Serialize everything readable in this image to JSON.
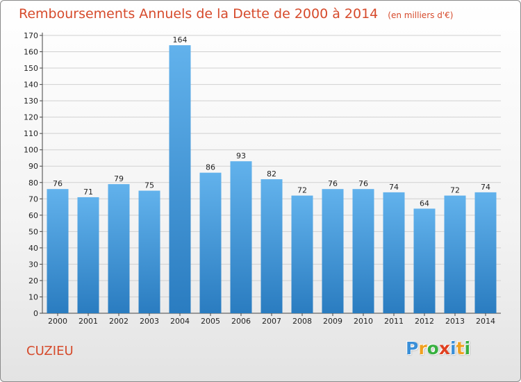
{
  "header": {
    "title": "Remboursements Annuels de la Dette de 2000 à 2014",
    "unit": "(en milliers d'€)"
  },
  "footer": {
    "commune": "CUZIEU",
    "logo_letters": [
      {
        "char": "P",
        "color": "#3a8fd8"
      },
      {
        "char": "r",
        "color": "#f0a020"
      },
      {
        "char": "o",
        "color": "#38b040"
      },
      {
        "char": "x",
        "color": "#e04020"
      },
      {
        "char": "i",
        "color": "#3a8fd8"
      },
      {
        "char": "t",
        "color": "#f0a020"
      },
      {
        "char": "i",
        "color": "#38b040"
      }
    ]
  },
  "chart_data": {
    "type": "bar",
    "title": "Remboursements Annuels de la Dette de 2000 à 2014",
    "subtitle": "(en milliers d'€)",
    "xlabel": "",
    "ylabel": "",
    "categories": [
      "2000",
      "2001",
      "2002",
      "2003",
      "2004",
      "2005",
      "2006",
      "2007",
      "2008",
      "2009",
      "2010",
      "2011",
      "2012",
      "2013",
      "2014"
    ],
    "values": [
      76,
      71,
      79,
      75,
      164,
      86,
      93,
      82,
      72,
      76,
      76,
      74,
      64,
      72,
      74
    ],
    "ylim": [
      0,
      170
    ],
    "ytick_step": 10,
    "grid": true,
    "bar_color_top": "#62b2ec",
    "bar_color_bottom": "#2a7cc0"
  }
}
